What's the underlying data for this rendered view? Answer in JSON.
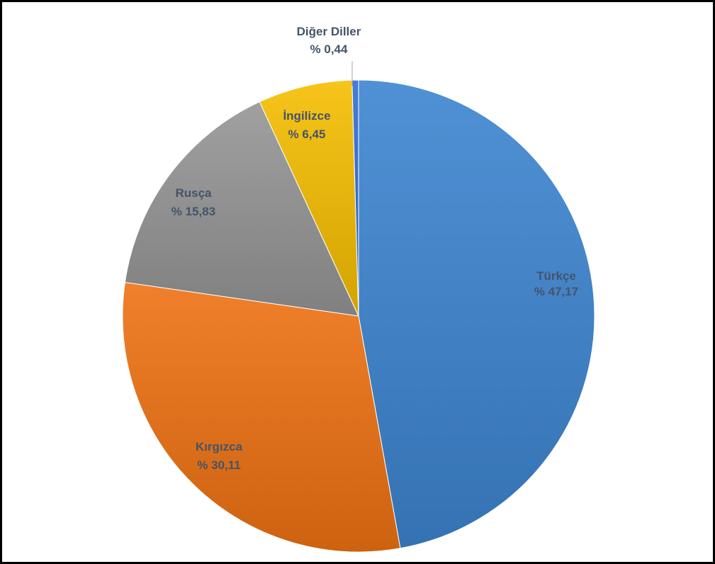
{
  "chart_data": {
    "type": "pie",
    "title": "",
    "start_angle_deg": 0,
    "direction": "clockwise",
    "slices": [
      {
        "label": "Türkçe",
        "value": 47.17,
        "value_text": "% 47,17",
        "color": "#3d85d0"
      },
      {
        "label": "Kırgızca",
        "value": 30.11,
        "value_text": "% 30,11",
        "color": "#ee7213"
      },
      {
        "label": "Rusça",
        "value": 15.83,
        "value_text": "% 15,83",
        "color": "#959595"
      },
      {
        "label": "İngilizce",
        "value": 6.45,
        "value_text": "% 6,45",
        "color": "#f5bd00"
      },
      {
        "label": "Diğer Diller",
        "value": 0.44,
        "value_text": "% 0,44",
        "color": "#2f6fd6"
      }
    ],
    "label_color": "#44546a",
    "legend": "none"
  }
}
